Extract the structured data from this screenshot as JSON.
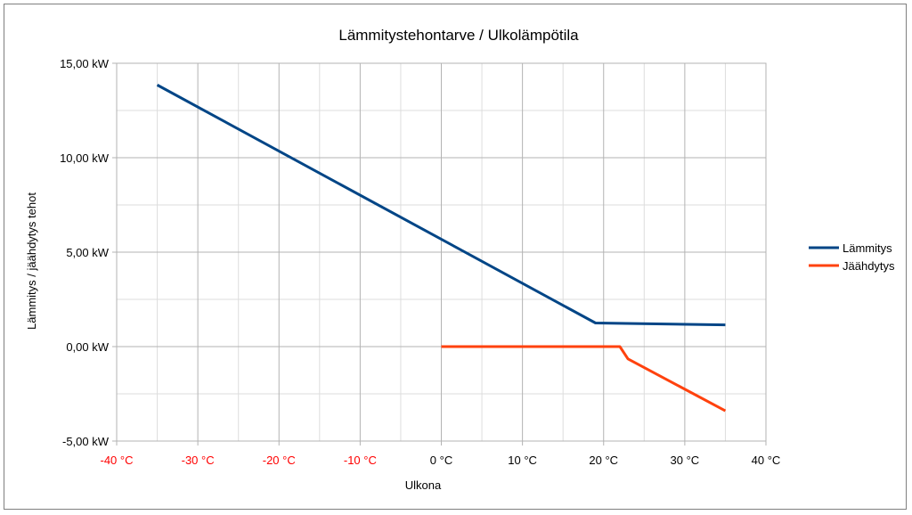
{
  "chart_data": {
    "type": "line",
    "title": "Lämmitystehontarve / Ulkolämpötila",
    "xlabel": "Ulkona",
    "ylabel": "Lämmitys / jäähdytys tehot",
    "xlim": [
      -40,
      40
    ],
    "ylim": [
      -5,
      15
    ],
    "x_ticks": [
      -40,
      -30,
      -20,
      -10,
      0,
      10,
      20,
      30,
      40
    ],
    "x_tick_labels": [
      "-40 °C",
      "-30 °C",
      "-20 °C",
      "-10 °C",
      "0 °C",
      "10 °C",
      "20 °C",
      "30 °C",
      "40 °C"
    ],
    "x_tick_colors": [
      "#ff0000",
      "#ff0000",
      "#ff0000",
      "#ff0000",
      "#000000",
      "#000000",
      "#000000",
      "#000000",
      "#000000"
    ],
    "y_ticks": [
      -5,
      0,
      5,
      10,
      15
    ],
    "y_tick_labels": [
      "-5,00 kW",
      "0,00 kW",
      "5,00 kW",
      "10,00 kW",
      "15,00 kW"
    ],
    "grid": true,
    "legend_position": "right",
    "series": [
      {
        "name": "Lämmitys",
        "color": "#004586",
        "x": [
          -35,
          19,
          35
        ],
        "y": [
          13.85,
          1.25,
          1.15
        ]
      },
      {
        "name": "Jäähdytys",
        "color": "#ff420e",
        "x": [
          0,
          22,
          23,
          35
        ],
        "y": [
          0,
          0,
          -0.65,
          -3.4
        ]
      }
    ]
  }
}
